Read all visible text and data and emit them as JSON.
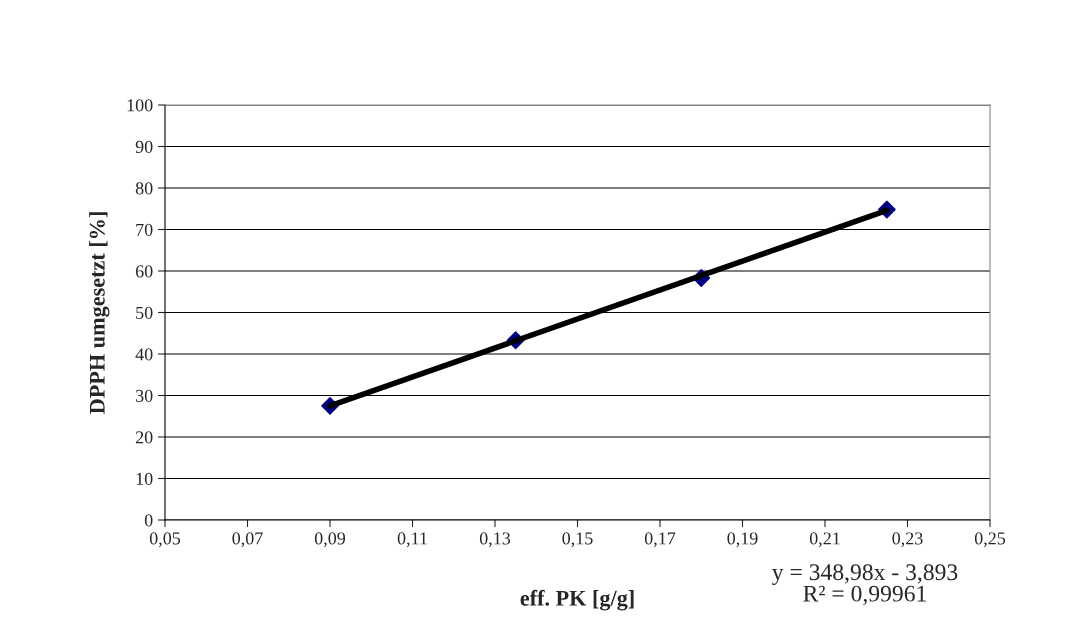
{
  "chart_data": {
    "type": "scatter",
    "xlabel": "eff. PK [g/g]",
    "ylabel": "DPPH umgesetzt [%]",
    "series": [
      {
        "color": "#000080",
        "marker": "diamond",
        "x": [
          0.09,
          0.135,
          0.18,
          0.225
        ],
        "values": [
          27.5,
          43.3,
          58.3,
          74.8
        ]
      },
      {
        "type": "line",
        "color": "#000000",
        "marker": "none",
        "x": [
          0.09,
          0.225
        ],
        "values": [
          27.5,
          74.6
        ]
      }
    ],
    "annotations": [
      "y = 348,98x - 3,893\nR² = 0,99961"
    ],
    "xlim": [
      0.05,
      0.25
    ],
    "xticks": [
      {
        "value": 0.05,
        "label": "0,05"
      },
      {
        "value": 0.07,
        "label": "0,07"
      },
      {
        "value": 0.09,
        "label": "0,09"
      },
      {
        "value": 0.11,
        "label": "0,11"
      },
      {
        "value": 0.13,
        "label": "0,13"
      },
      {
        "value": 0.15,
        "label": "0,15"
      },
      {
        "value": 0.17,
        "label": "0,17"
      },
      {
        "value": 0.19,
        "label": "0,19"
      },
      {
        "value": 0.21,
        "label": "0,21"
      },
      {
        "value": 0.23,
        "label": "0,23"
      },
      {
        "value": 0.25,
        "label": "0,25"
      }
    ],
    "ylim": [
      0,
      100
    ],
    "yticks": [
      0,
      10,
      20,
      30,
      40,
      50,
      60,
      70,
      80,
      90,
      100
    ],
    "grid": "y",
    "legend": false
  }
}
